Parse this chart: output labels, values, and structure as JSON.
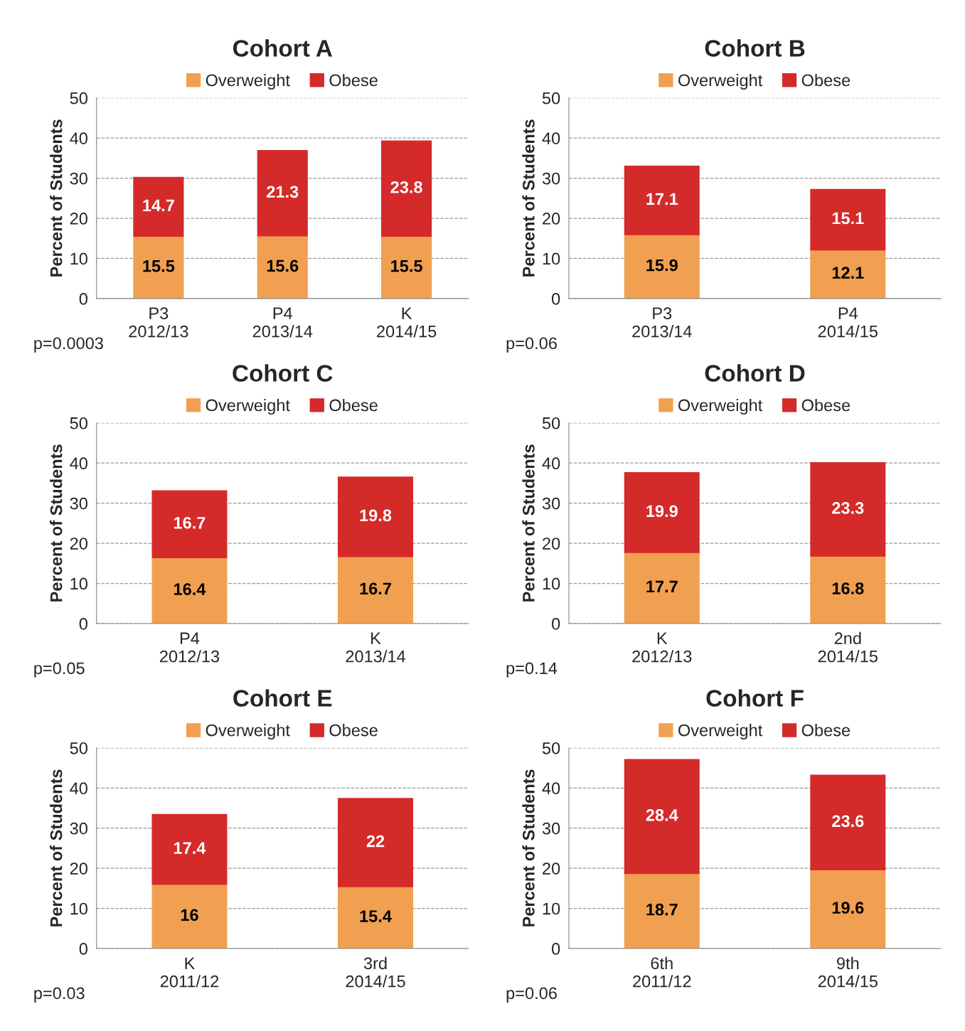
{
  "chart_data": [
    {
      "type": "bar",
      "title": "Cohort A",
      "ylabel": "Percent of Students",
      "categories": [
        "P3\n2012/13",
        "P4\n2013/14",
        "K\n2014/15"
      ],
      "stacked": true,
      "data_labels": true,
      "legend": "top",
      "grid": "y",
      "ylim": [
        0,
        50
      ],
      "yticks": [
        0,
        10,
        20,
        30,
        40,
        50
      ],
      "annotations": [
        "p=0.0003"
      ],
      "series": [
        {
          "name": "Overweight",
          "color": "#f0a050",
          "values": [
            15.5,
            15.6,
            15.5
          ]
        },
        {
          "name": "Obese",
          "color": "#d42a2a",
          "values": [
            14.7,
            21.3,
            23.8
          ]
        }
      ]
    },
    {
      "type": "bar",
      "title": "Cohort B",
      "ylabel": "Percent of Students",
      "categories": [
        "P3\n2013/14",
        "P4\n2014/15"
      ],
      "stacked": true,
      "data_labels": true,
      "legend": "top",
      "grid": "y",
      "ylim": [
        0,
        50
      ],
      "yticks": [
        0,
        10,
        20,
        30,
        40,
        50
      ],
      "annotations": [
        "p=0.06"
      ],
      "series": [
        {
          "name": "Overweight",
          "color": "#f0a050",
          "values": [
            15.9,
            12.1
          ]
        },
        {
          "name": "Obese",
          "color": "#d42a2a",
          "values": [
            17.1,
            15.1
          ]
        }
      ]
    },
    {
      "type": "bar",
      "title": "Cohort C",
      "ylabel": "Percent of Students",
      "categories": [
        "P4\n2012/13",
        "K\n2013/14"
      ],
      "stacked": true,
      "data_labels": true,
      "legend": "top",
      "grid": "y",
      "ylim": [
        0,
        50
      ],
      "yticks": [
        0,
        10,
        20,
        30,
        40,
        50
      ],
      "annotations": [
        "p=0.05"
      ],
      "series": [
        {
          "name": "Overweight",
          "color": "#f0a050",
          "values": [
            16.4,
            16.7
          ]
        },
        {
          "name": "Obese",
          "color": "#d42a2a",
          "values": [
            16.7,
            19.8
          ]
        }
      ]
    },
    {
      "type": "bar",
      "title": "Cohort D",
      "ylabel": "Percent of Students",
      "categories": [
        "K\n2012/13",
        "2nd\n2014/15"
      ],
      "stacked": true,
      "data_labels": true,
      "legend": "top",
      "grid": "y",
      "ylim": [
        0,
        50
      ],
      "yticks": [
        0,
        10,
        20,
        30,
        40,
        50
      ],
      "annotations": [
        "p=0.14"
      ],
      "series": [
        {
          "name": "Overweight",
          "color": "#f0a050",
          "values": [
            17.7,
            16.8
          ]
        },
        {
          "name": "Obese",
          "color": "#d42a2a",
          "values": [
            19.9,
            23.3
          ]
        }
      ]
    },
    {
      "type": "bar",
      "title": "Cohort E",
      "ylabel": "Percent of Students",
      "categories": [
        "K\n2011/12",
        "3rd\n2014/15"
      ],
      "stacked": true,
      "data_labels": true,
      "legend": "top",
      "grid": "y",
      "ylim": [
        0,
        50
      ],
      "yticks": [
        0,
        10,
        20,
        30,
        40,
        50
      ],
      "annotations": [
        "p=0.03"
      ],
      "series": [
        {
          "name": "Overweight",
          "color": "#f0a050",
          "values": [
            16,
            15.4
          ]
        },
        {
          "name": "Obese",
          "color": "#d42a2a",
          "values": [
            17.4,
            22
          ]
        }
      ]
    },
    {
      "type": "bar",
      "title": "Cohort F",
      "ylabel": "Percent of Students",
      "categories": [
        "6th\n2011/12",
        "9th\n2014/15"
      ],
      "stacked": true,
      "data_labels": true,
      "legend": "top",
      "grid": "y",
      "ylim": [
        0,
        50
      ],
      "yticks": [
        0,
        10,
        20,
        30,
        40,
        50
      ],
      "annotations": [
        "p=0.06"
      ],
      "series": [
        {
          "name": "Overweight",
          "color": "#f0a050",
          "values": [
            18.7,
            19.6
          ]
        },
        {
          "name": "Obese",
          "color": "#d42a2a",
          "values": [
            28.4,
            23.6
          ]
        }
      ]
    }
  ]
}
